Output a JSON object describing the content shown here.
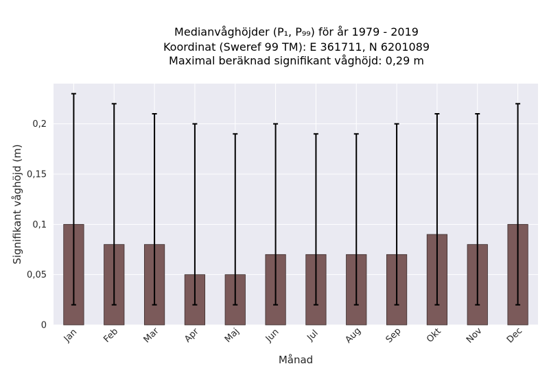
{
  "chart_data": {
    "type": "bar",
    "title_lines": [
      "Medianvåghöjder (P₁, P₉₉) för år 1979 - 2019",
      "Koordinat (Sweref 99 TM): E 361711, N 6201089",
      "Maximal beräknad signifikant våghöjd: 0,29 m"
    ],
    "xlabel": "Månad",
    "ylabel": "Signifikant våghöjd (m)",
    "categories": [
      "Jan",
      "Feb",
      "Mar",
      "Apr",
      "Maj",
      "Jun",
      "Jul",
      "Aug",
      "Sep",
      "Okt",
      "Nov",
      "Dec"
    ],
    "values": [
      0.1,
      0.08,
      0.08,
      0.05,
      0.05,
      0.07,
      0.07,
      0.07,
      0.07,
      0.09,
      0.08,
      0.1
    ],
    "error_low": [
      0.02,
      0.02,
      0.02,
      0.02,
      0.02,
      0.02,
      0.02,
      0.02,
      0.02,
      0.02,
      0.02,
      0.02
    ],
    "error_high": [
      0.23,
      0.22,
      0.21,
      0.2,
      0.19,
      0.2,
      0.19,
      0.19,
      0.2,
      0.21,
      0.21,
      0.22
    ],
    "ylim": [
      0,
      0.24
    ],
    "yticks": [
      0,
      0.05,
      0.1,
      0.15,
      0.2
    ],
    "ytick_labels": [
      "0",
      "0,05",
      "0,1",
      "0,15",
      "0,2"
    ],
    "grid": true,
    "colors": {
      "bar_fill": "#7b5a5a",
      "bar_edge": "#3a2c2c",
      "error_bar": "#000000",
      "plot_background": "#eaeaf2",
      "grid": "#ffffff"
    }
  }
}
